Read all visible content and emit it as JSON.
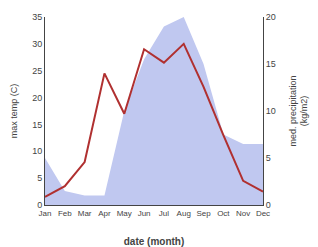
{
  "chart_data": {
    "type": "line",
    "categories": [
      "Jan",
      "Feb",
      "Mar",
      "Apr",
      "May",
      "Jun",
      "Jul",
      "Aug",
      "Sep",
      "Oct",
      "Nov",
      "Dec"
    ],
    "xlabel": "date (month)",
    "ylabel": "max temp (C)",
    "y2label": "med. precipitation\n(kg/m2)",
    "ylim": [
      0,
      35
    ],
    "yticks": [
      0,
      5,
      10,
      15,
      20,
      25,
      30,
      35
    ],
    "y2lim": [
      0,
      20
    ],
    "y2ticks": [
      0,
      5,
      10,
      15,
      20
    ],
    "grid": false,
    "series": [
      {
        "type": "area",
        "axis": "y2",
        "color": "#c0c8f0",
        "values": [
          5.0,
          1.5,
          1.0,
          1.0,
          10.0,
          15.5,
          19.0,
          20.0,
          15.0,
          7.5,
          6.5,
          6.5
        ]
      },
      {
        "type": "line",
        "color": "#b03030",
        "values": [
          1.5,
          3.5,
          8.0,
          24.5,
          17.0,
          29.0,
          26.5,
          30.0,
          22.0,
          13.0,
          4.5,
          2.5
        ]
      }
    ]
  }
}
